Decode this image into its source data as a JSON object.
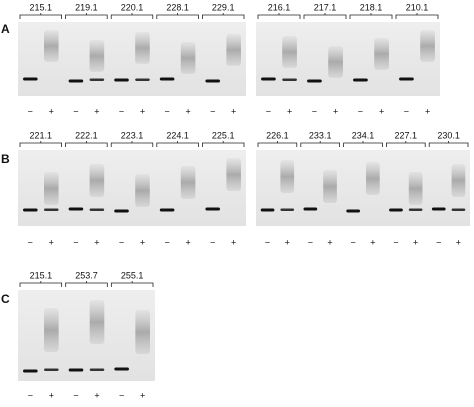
{
  "panels": [
    {
      "label": "A",
      "gels": [
        {
          "groups": [
            "215.1",
            "219.1",
            "220.1",
            "228.1",
            "229.1"
          ]
        },
        {
          "groups": [
            "216.1",
            "217.1",
            "218.1",
            "210.1"
          ]
        }
      ]
    },
    {
      "label": "B",
      "gels": [
        {
          "groups": [
            "221.1",
            "222.1",
            "223.1",
            "224.1",
            "225.1"
          ]
        },
        {
          "groups": [
            "226.1",
            "233.1",
            "234.1",
            "227.1",
            "230.1"
          ]
        }
      ]
    },
    {
      "label": "C",
      "gels": [
        {
          "groups": [
            "215.1",
            "253.7",
            "255.1"
          ]
        }
      ]
    }
  ],
  "lane_signs": [
    "−",
    "+"
  ]
}
